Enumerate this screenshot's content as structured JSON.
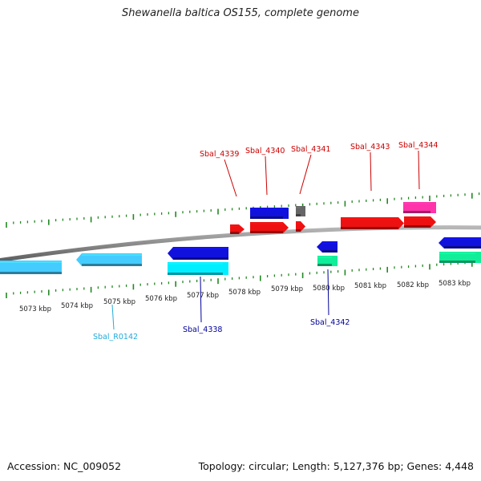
{
  "title": "Shewanella baltica OS155, complete genome",
  "footer": {
    "accession": "Accession: NC_009052",
    "summary": "Topology: circular; Length: 5,127,376 bp; Genes: 4,448"
  },
  "colors": {
    "backbone": "#8a8a8a",
    "ticks": "#228822",
    "tick_label": "#222222",
    "red": "#ee1111",
    "blue": "#1111dd",
    "light_blue": "#44ccff",
    "cyan": "#00eeff",
    "green": "#11ee99",
    "magenta": "#ff33aa",
    "gray": "#666666",
    "label_red": "#cc0000",
    "label_blue": "#000099",
    "label_cyan": "#22aadd"
  },
  "scale": {
    "labels": [
      "5073 kbp",
      "5074 kbp",
      "5075 kbp",
      "5076 kbp",
      "5077 kbp",
      "5078 kbp",
      "5079 kbp",
      "5080 kbp",
      "5081 kbp",
      "5082 kbp",
      "5083 kbp"
    ]
  },
  "gene_labels": [
    {
      "text": "Sbal_4339",
      "color": "label_red"
    },
    {
      "text": "Sbal_4340",
      "color": "label_red"
    },
    {
      "text": "Sbal_4341",
      "color": "label_red"
    },
    {
      "text": "Sbal_4343",
      "color": "label_red"
    },
    {
      "text": "Sbal_4344",
      "color": "label_red"
    },
    {
      "text": "Sbal_R0142",
      "color": "label_cyan"
    },
    {
      "text": "Sbal_4338",
      "color": "label_blue"
    },
    {
      "text": "Sbal_4342",
      "color": "label_blue"
    }
  ]
}
